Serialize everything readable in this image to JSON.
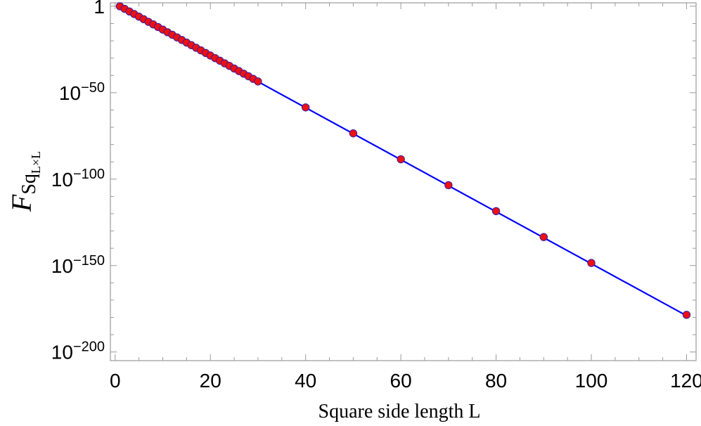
{
  "chart_data": {
    "type": "scatter",
    "title": "",
    "xlabel": "Square side length L",
    "ylabel": {
      "main": "F",
      "sub": "Sq",
      "subsub": "L×L"
    },
    "xlim": [
      -1,
      122
    ],
    "ylim_log10": [
      -205,
      2
    ],
    "y_scale": "log",
    "x_ticks": [
      "0",
      "20",
      "40",
      "60",
      "80",
      "100",
      "120"
    ],
    "y_ticks": [
      {
        "log10": 0,
        "base": "1",
        "exp": ""
      },
      {
        "log10": -50,
        "base": "10",
        "exp": "−50"
      },
      {
        "log10": -100,
        "base": "10",
        "exp": "−100"
      },
      {
        "log10": -150,
        "base": "10",
        "exp": "−150"
      },
      {
        "log10": -200,
        "base": "10",
        "exp": "−200"
      }
    ],
    "grid": false,
    "fit_line": {
      "color": "#0000ff",
      "x_range": [
        1,
        120
      ],
      "log10_at_x_start": 0.0,
      "log10_at_x_end": -179.0
    },
    "series": [
      {
        "marker_color": "#ee1111",
        "marker_edge": "#3a1aa0",
        "x": [
          1,
          2,
          3,
          4,
          5,
          6,
          7,
          8,
          9,
          10,
          11,
          12,
          13,
          14,
          15,
          16,
          17,
          18,
          19,
          20,
          21,
          22,
          23,
          24,
          25,
          26,
          27,
          28,
          29,
          30,
          40,
          50,
          60,
          70,
          80,
          90,
          100,
          120
        ],
        "log10_y": [
          0.0,
          -1.5,
          -3.0,
          -4.5,
          -6.0,
          -7.5,
          -9.0,
          -10.5,
          -12.0,
          -13.5,
          -15.0,
          -16.5,
          -18.0,
          -19.5,
          -21.0,
          -22.5,
          -24.0,
          -25.5,
          -27.0,
          -28.5,
          -30.0,
          -31.5,
          -33.0,
          -34.5,
          -36.0,
          -37.5,
          -39.0,
          -40.5,
          -42.0,
          -43.5,
          -58.5,
          -73.5,
          -88.5,
          -103.5,
          -118.5,
          -133.5,
          -148.5,
          -178.5
        ]
      }
    ]
  }
}
